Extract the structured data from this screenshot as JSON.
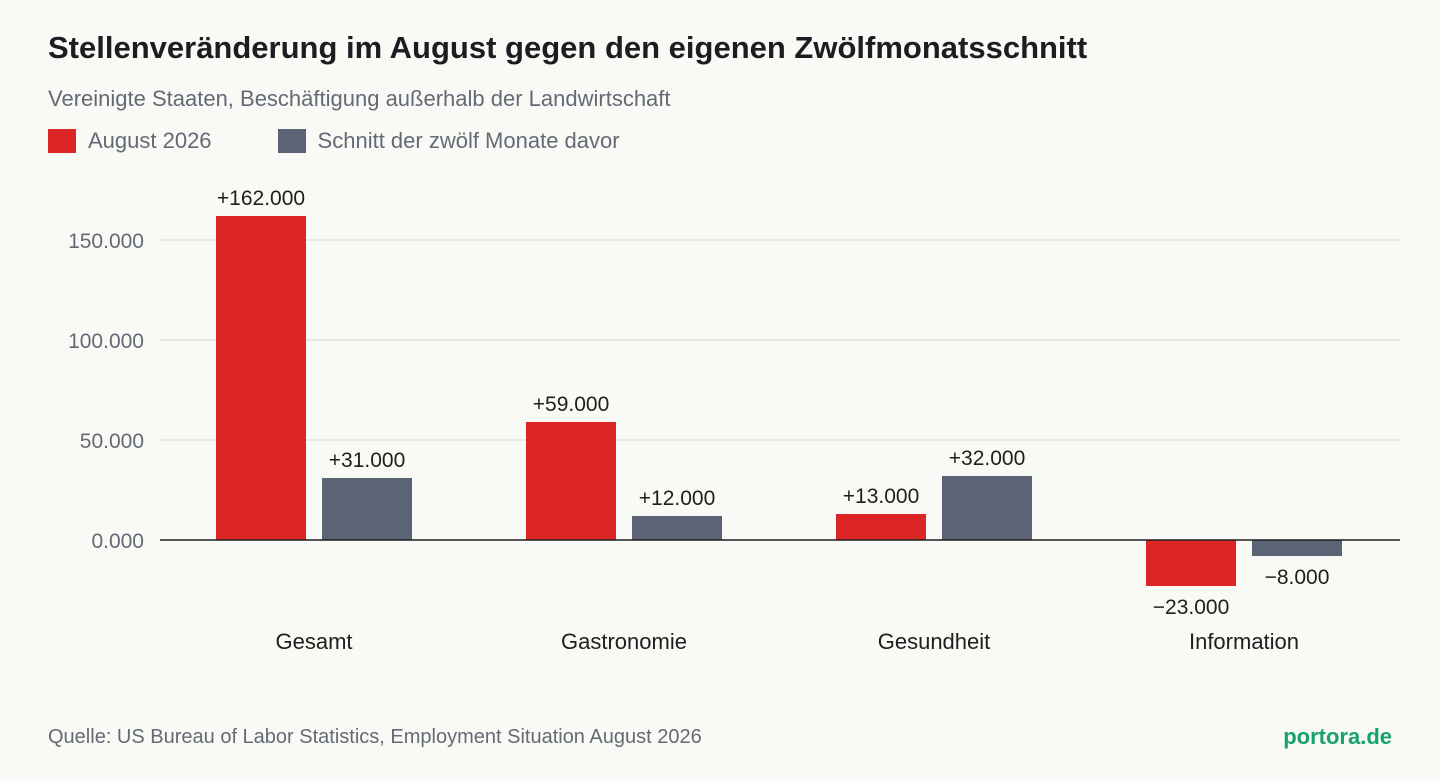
{
  "header": {
    "title": "Stellenveränderung im August gegen den eigenen Zwölfmonatsschnitt",
    "subtitle": "Vereinigte Staaten, Beschäftigung außerhalb der Landwirtschaft"
  },
  "footer": {
    "source": "Quelle: US Bureau of Labor Statistics, Employment Situation August 2026",
    "brand": "portora.de"
  },
  "chart_data": {
    "type": "bar",
    "categories": [
      "Gesamt",
      "Gastronomie",
      "Gesundheit",
      "Information"
    ],
    "series": [
      {
        "name": "August 2026",
        "color": "#dc2626",
        "values": [
          162000,
          59000,
          13000,
          -23000
        ],
        "labels": [
          "+162.000",
          "+59.000",
          "+13.000",
          "−23.000"
        ]
      },
      {
        "name": "Schnitt der zwölf Monate davor",
        "color": "#5b6475",
        "values": [
          31000,
          12000,
          32000,
          -8000
        ],
        "labels": [
          "+31.000",
          "+12.000",
          "+32.000",
          "−8.000"
        ]
      }
    ],
    "yticks": [
      0,
      50000,
      100000,
      150000
    ],
    "ytick_labels": [
      "0.000",
      "50.000",
      "100.000",
      "150.000"
    ],
    "ylim": [
      -23000,
      162000
    ],
    "grid": true,
    "legend_position": "top-left"
  }
}
